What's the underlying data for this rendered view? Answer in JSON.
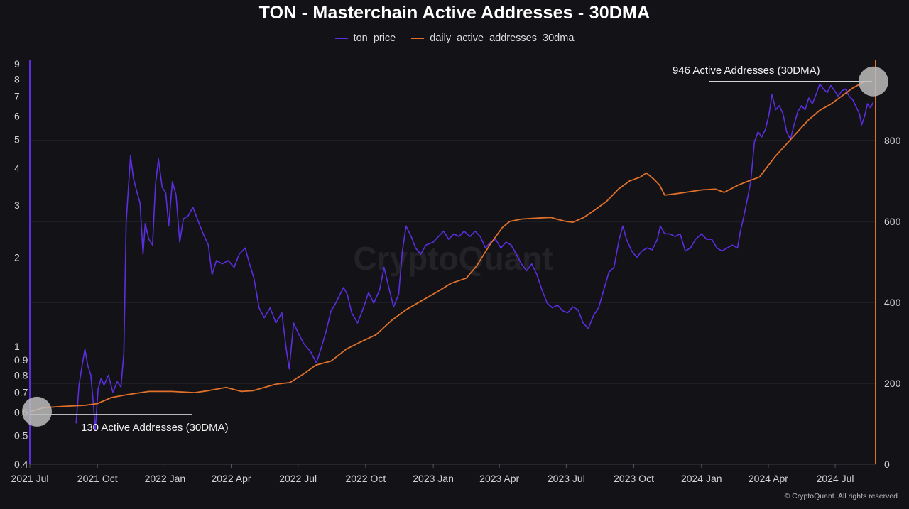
{
  "chart_data": {
    "type": "line",
    "title": "TON - Masterchain Active Addresses - 30DMA",
    "xlabel": "",
    "ylabel_left": "",
    "ylabel_right": "",
    "x_ticks": [
      "2021 Jul",
      "2021 Oct",
      "2022 Jan",
      "2022 Apr",
      "2022 Jul",
      "2022 Oct",
      "2023 Jan",
      "2023 Apr",
      "2023 Jul",
      "2023 Oct",
      "2024 Jan",
      "2024 Apr",
      "2024 Jul"
    ],
    "y_left_ticks": [
      "0.4",
      "0.5",
      "0.6",
      "0.7",
      "0.8",
      "0.9",
      "1",
      "2",
      "3",
      "4",
      "5",
      "6",
      "7",
      "8",
      "9"
    ],
    "y_left_scale": "log",
    "y_left_range": [
      0.4,
      9.3
    ],
    "y_right_ticks": [
      "0",
      "200",
      "400",
      "600",
      "800"
    ],
    "y_right_range": [
      0,
      1000
    ],
    "x_range": [
      "2021-07-01",
      "2024-08-25"
    ],
    "grid": "horizontal",
    "legend_position": "top-center",
    "series": [
      {
        "name": "ton_price",
        "axis": "left",
        "color": "#5b2ee0",
        "points": [
          [
            "2021-09-02",
            0.55
          ],
          [
            "2021-09-06",
            0.74
          ],
          [
            "2021-09-10",
            0.86
          ],
          [
            "2021-09-14",
            0.98
          ],
          [
            "2021-09-18",
            0.86
          ],
          [
            "2021-09-22",
            0.8
          ],
          [
            "2021-09-26",
            0.62
          ],
          [
            "2021-09-28",
            0.52
          ],
          [
            "2021-10-02",
            0.72
          ],
          [
            "2021-10-06",
            0.78
          ],
          [
            "2021-10-10",
            0.74
          ],
          [
            "2021-10-16",
            0.8
          ],
          [
            "2021-10-22",
            0.7
          ],
          [
            "2021-10-28",
            0.76
          ],
          [
            "2021-11-02",
            0.73
          ],
          [
            "2021-11-06",
            0.95
          ],
          [
            "2021-11-09",
            2.6
          ],
          [
            "2021-11-12",
            3.4
          ],
          [
            "2021-11-15",
            4.4
          ],
          [
            "2021-11-19",
            3.7
          ],
          [
            "2021-11-24",
            3.3
          ],
          [
            "2021-11-28",
            3.05
          ],
          [
            "2021-12-02",
            2.05
          ],
          [
            "2021-12-05",
            2.6
          ],
          [
            "2021-12-10",
            2.3
          ],
          [
            "2021-12-15",
            2.2
          ],
          [
            "2021-12-19",
            3.5
          ],
          [
            "2021-12-23",
            4.3
          ],
          [
            "2021-12-28",
            3.45
          ],
          [
            "2022-01-02",
            3.3
          ],
          [
            "2022-01-06",
            2.55
          ],
          [
            "2022-01-11",
            3.6
          ],
          [
            "2022-01-16",
            3.25
          ],
          [
            "2022-01-21",
            2.25
          ],
          [
            "2022-01-26",
            2.7
          ],
          [
            "2022-02-01",
            2.75
          ],
          [
            "2022-02-08",
            2.95
          ],
          [
            "2022-02-15",
            2.65
          ],
          [
            "2022-02-22",
            2.4
          ],
          [
            "2022-03-01",
            2.2
          ],
          [
            "2022-03-06",
            1.75
          ],
          [
            "2022-03-12",
            1.95
          ],
          [
            "2022-03-20",
            1.9
          ],
          [
            "2022-03-28",
            1.95
          ],
          [
            "2022-04-05",
            1.85
          ],
          [
            "2022-04-12",
            2.05
          ],
          [
            "2022-04-20",
            2.15
          ],
          [
            "2022-04-26",
            1.9
          ],
          [
            "2022-05-02",
            1.7
          ],
          [
            "2022-05-09",
            1.35
          ],
          [
            "2022-05-16",
            1.25
          ],
          [
            "2022-05-24",
            1.35
          ],
          [
            "2022-06-01",
            1.2
          ],
          [
            "2022-06-09",
            1.3
          ],
          [
            "2022-06-15",
            0.98
          ],
          [
            "2022-06-19",
            0.84
          ],
          [
            "2022-06-25",
            1.2
          ],
          [
            "2022-07-02",
            1.1
          ],
          [
            "2022-07-09",
            1.02
          ],
          [
            "2022-07-18",
            0.96
          ],
          [
            "2022-07-26",
            0.88
          ],
          [
            "2022-08-01",
            0.98
          ],
          [
            "2022-08-08",
            1.12
          ],
          [
            "2022-08-15",
            1.32
          ],
          [
            "2022-08-20",
            1.38
          ],
          [
            "2022-08-26",
            1.48
          ],
          [
            "2022-09-01",
            1.58
          ],
          [
            "2022-09-06",
            1.5
          ],
          [
            "2022-09-12",
            1.3
          ],
          [
            "2022-09-20",
            1.2
          ],
          [
            "2022-09-28",
            1.35
          ],
          [
            "2022-10-05",
            1.52
          ],
          [
            "2022-10-12",
            1.4
          ],
          [
            "2022-10-20",
            1.55
          ],
          [
            "2022-10-26",
            1.85
          ],
          [
            "2022-11-01",
            1.6
          ],
          [
            "2022-11-08",
            1.36
          ],
          [
            "2022-11-15",
            1.5
          ],
          [
            "2022-11-20",
            2.1
          ],
          [
            "2022-11-25",
            2.55
          ],
          [
            "2022-12-02",
            2.35
          ],
          [
            "2022-12-08",
            2.15
          ],
          [
            "2022-12-15",
            2.05
          ],
          [
            "2022-12-22",
            2.2
          ],
          [
            "2023-01-01",
            2.25
          ],
          [
            "2023-01-08",
            2.35
          ],
          [
            "2023-01-15",
            2.45
          ],
          [
            "2023-01-22",
            2.3
          ],
          [
            "2023-01-29",
            2.4
          ],
          [
            "2023-02-05",
            2.35
          ],
          [
            "2023-02-12",
            2.45
          ],
          [
            "2023-02-20",
            2.35
          ],
          [
            "2023-02-27",
            2.45
          ],
          [
            "2023-03-06",
            2.35
          ],
          [
            "2023-03-13",
            2.15
          ],
          [
            "2023-03-20",
            2.25
          ],
          [
            "2023-03-27",
            2.3
          ],
          [
            "2023-04-03",
            2.15
          ],
          [
            "2023-04-10",
            2.25
          ],
          [
            "2023-04-17",
            2.2
          ],
          [
            "2023-04-24",
            2.05
          ],
          [
            "2023-05-01",
            1.9
          ],
          [
            "2023-05-08",
            1.8
          ],
          [
            "2023-05-15",
            1.9
          ],
          [
            "2023-05-22",
            1.75
          ],
          [
            "2023-05-29",
            1.55
          ],
          [
            "2023-06-05",
            1.4
          ],
          [
            "2023-06-12",
            1.35
          ],
          [
            "2023-06-19",
            1.38
          ],
          [
            "2023-06-26",
            1.32
          ],
          [
            "2023-07-03",
            1.3
          ],
          [
            "2023-07-10",
            1.36
          ],
          [
            "2023-07-17",
            1.33
          ],
          [
            "2023-07-24",
            1.2
          ],
          [
            "2023-07-31",
            1.15
          ],
          [
            "2023-08-07",
            1.27
          ],
          [
            "2023-08-14",
            1.35
          ],
          [
            "2023-08-21",
            1.55
          ],
          [
            "2023-08-28",
            1.78
          ],
          [
            "2023-09-04",
            1.85
          ],
          [
            "2023-09-11",
            2.3
          ],
          [
            "2023-09-16",
            2.55
          ],
          [
            "2023-09-21",
            2.3
          ],
          [
            "2023-09-28",
            2.1
          ],
          [
            "2023-10-05",
            2.0
          ],
          [
            "2023-10-12",
            2.1
          ],
          [
            "2023-10-19",
            2.15
          ],
          [
            "2023-10-26",
            2.12
          ],
          [
            "2023-11-02",
            2.3
          ],
          [
            "2023-11-06",
            2.55
          ],
          [
            "2023-11-12",
            2.4
          ],
          [
            "2023-11-19",
            2.4
          ],
          [
            "2023-11-26",
            2.35
          ],
          [
            "2023-12-03",
            2.4
          ],
          [
            "2023-12-10",
            2.1
          ],
          [
            "2023-12-17",
            2.15
          ],
          [
            "2023-12-24",
            2.3
          ],
          [
            "2024-01-01",
            2.4
          ],
          [
            "2024-01-08",
            2.3
          ],
          [
            "2024-01-15",
            2.3
          ],
          [
            "2024-01-22",
            2.15
          ],
          [
            "2024-01-29",
            2.1
          ],
          [
            "2024-02-05",
            2.15
          ],
          [
            "2024-02-12",
            2.2
          ],
          [
            "2024-02-19",
            2.15
          ],
          [
            "2024-02-23",
            2.45
          ],
          [
            "2024-02-27",
            2.7
          ],
          [
            "2024-03-03",
            3.1
          ],
          [
            "2024-03-08",
            3.6
          ],
          [
            "2024-03-13",
            4.9
          ],
          [
            "2024-03-18",
            5.3
          ],
          [
            "2024-03-23",
            5.1
          ],
          [
            "2024-03-28",
            5.4
          ],
          [
            "2024-04-02",
            6.1
          ],
          [
            "2024-04-06",
            7.1
          ],
          [
            "2024-04-11",
            6.3
          ],
          [
            "2024-04-16",
            6.5
          ],
          [
            "2024-04-21",
            6.1
          ],
          [
            "2024-04-26",
            5.3
          ],
          [
            "2024-05-01",
            5.0
          ],
          [
            "2024-05-06",
            5.6
          ],
          [
            "2024-05-11",
            6.2
          ],
          [
            "2024-05-16",
            6.5
          ],
          [
            "2024-05-21",
            6.3
          ],
          [
            "2024-05-26",
            6.9
          ],
          [
            "2024-05-31",
            6.6
          ],
          [
            "2024-06-05",
            7.1
          ],
          [
            "2024-06-10",
            7.7
          ],
          [
            "2024-06-15",
            7.4
          ],
          [
            "2024-06-20",
            7.2
          ],
          [
            "2024-06-25",
            7.6
          ],
          [
            "2024-06-30",
            7.3
          ],
          [
            "2024-07-05",
            7.0
          ],
          [
            "2024-07-10",
            7.3
          ],
          [
            "2024-07-15",
            7.4
          ],
          [
            "2024-07-20",
            7.0
          ],
          [
            "2024-07-25",
            6.8
          ],
          [
            "2024-07-30",
            6.4
          ],
          [
            "2024-08-03",
            6.1
          ],
          [
            "2024-08-06",
            5.6
          ],
          [
            "2024-08-10",
            6.0
          ],
          [
            "2024-08-14",
            6.6
          ],
          [
            "2024-08-18",
            6.4
          ],
          [
            "2024-08-22",
            6.7
          ]
        ]
      },
      {
        "name": "daily_active_addresses_30dma",
        "axis": "right",
        "color": "#e0702a",
        "points": [
          [
            "2021-07-01",
            130
          ],
          [
            "2021-07-20",
            140
          ],
          [
            "2021-08-15",
            143
          ],
          [
            "2021-09-15",
            146
          ],
          [
            "2021-10-01",
            150
          ],
          [
            "2021-10-20",
            165
          ],
          [
            "2021-11-10",
            172
          ],
          [
            "2021-12-10",
            180
          ],
          [
            "2022-01-10",
            180
          ],
          [
            "2022-02-10",
            177
          ],
          [
            "2022-03-01",
            182
          ],
          [
            "2022-03-25",
            190
          ],
          [
            "2022-04-15",
            180
          ],
          [
            "2022-05-01",
            182
          ],
          [
            "2022-06-01",
            198
          ],
          [
            "2022-06-20",
            202
          ],
          [
            "2022-07-10",
            225
          ],
          [
            "2022-07-25",
            245
          ],
          [
            "2022-08-15",
            255
          ],
          [
            "2022-09-05",
            285
          ],
          [
            "2022-09-25",
            303
          ],
          [
            "2022-10-15",
            320
          ],
          [
            "2022-11-05",
            355
          ],
          [
            "2022-11-25",
            382
          ],
          [
            "2022-12-15",
            403
          ],
          [
            "2023-01-10",
            430
          ],
          [
            "2023-01-25",
            447
          ],
          [
            "2023-02-15",
            460
          ],
          [
            "2023-03-01",
            490
          ],
          [
            "2023-03-20",
            545
          ],
          [
            "2023-04-05",
            585
          ],
          [
            "2023-04-15",
            600
          ],
          [
            "2023-05-01",
            606
          ],
          [
            "2023-05-20",
            608
          ],
          [
            "2023-06-10",
            610
          ],
          [
            "2023-06-20",
            605
          ],
          [
            "2023-07-01",
            600
          ],
          [
            "2023-07-10",
            598
          ],
          [
            "2023-07-25",
            610
          ],
          [
            "2023-08-10",
            630
          ],
          [
            "2023-08-25",
            650
          ],
          [
            "2023-09-10",
            680
          ],
          [
            "2023-09-25",
            700
          ],
          [
            "2023-10-10",
            710
          ],
          [
            "2023-10-18",
            720
          ],
          [
            "2023-10-28",
            705
          ],
          [
            "2023-11-05",
            690
          ],
          [
            "2023-11-12",
            665
          ],
          [
            "2023-11-25",
            668
          ],
          [
            "2023-12-10",
            672
          ],
          [
            "2024-01-01",
            678
          ],
          [
            "2024-01-20",
            680
          ],
          [
            "2024-02-01",
            672
          ],
          [
            "2024-02-20",
            690
          ],
          [
            "2024-03-05",
            700
          ],
          [
            "2024-03-20",
            710
          ],
          [
            "2024-04-10",
            760
          ],
          [
            "2024-04-25",
            790
          ],
          [
            "2024-05-10",
            820
          ],
          [
            "2024-05-25",
            850
          ],
          [
            "2024-06-10",
            875
          ],
          [
            "2024-06-25",
            890
          ],
          [
            "2024-07-10",
            910
          ],
          [
            "2024-07-25",
            930
          ],
          [
            "2024-08-10",
            946
          ],
          [
            "2024-08-20",
            946
          ]
        ]
      }
    ],
    "annotations": [
      {
        "text": "130 Active Addresses (30DMA)",
        "x": "2021-07-01",
        "value": 130,
        "axis": "right"
      },
      {
        "text": "946 Active Addresses (30DMA)",
        "x": "2024-08-20",
        "value": 946,
        "axis": "right"
      }
    ]
  },
  "footer": {
    "copyright": "© CryptoQuant. All rights reserved"
  },
  "watermark": "CryptoQuant",
  "colors": {
    "background": "#131217",
    "price": "#5b2ee0",
    "addresses": "#e0702a"
  }
}
